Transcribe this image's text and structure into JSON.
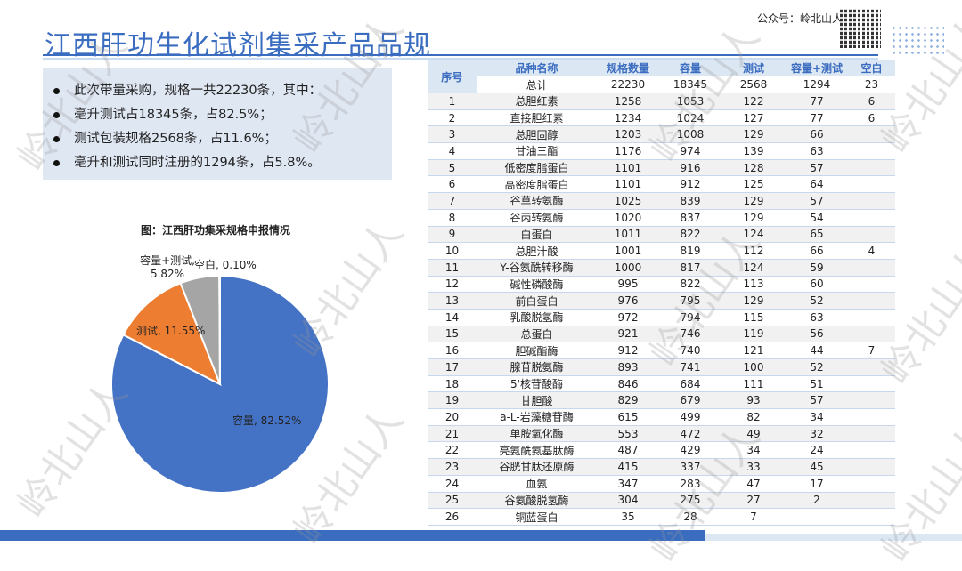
{
  "title": "江西肝功生化试剂集采产品品规",
  "brand": {
    "label": "公众号：岭北山人",
    "watermark": "岭北山人"
  },
  "bullets": [
    "此次带量采购，规格一共22230条，其中：",
    "毫升测试占18345条，占82.5%；",
    "测试包装规格2568条，占11.6%；",
    "毫升和测试同时注册的1294条，占5.8%。"
  ],
  "chart_data": {
    "type": "pie",
    "title": "图：江西肝功集采规格申报情况",
    "slices": [
      {
        "name": "容量",
        "value": 82.52,
        "label": "容量, 82.52%",
        "color": "#4472c4"
      },
      {
        "name": "测试",
        "value": 11.55,
        "label": "测试, 11.55%",
        "color": "#ed7d31"
      },
      {
        "name": "容量+测试",
        "value": 5.82,
        "label": "容量+测试, 5.82%",
        "color": "#a5a5a5"
      },
      {
        "name": "空白",
        "value": 0.1,
        "label": "空白, 0.10%",
        "color": "#ffc000"
      }
    ]
  },
  "table": {
    "headers": [
      "序号",
      "品种名称",
      "规格数量",
      "容量",
      "测试",
      "容量+测试",
      "空白"
    ],
    "total": [
      "总计",
      "22230",
      "18345",
      "2568",
      "1294",
      "23"
    ],
    "rows": [
      [
        "1",
        "总胆红素",
        "1258",
        "1053",
        "122",
        "77",
        "6"
      ],
      [
        "2",
        "直接胆红素",
        "1234",
        "1024",
        "127",
        "77",
        "6"
      ],
      [
        "3",
        "总胆固醇",
        "1203",
        "1008",
        "129",
        "66",
        ""
      ],
      [
        "4",
        "甘油三酯",
        "1176",
        "974",
        "139",
        "63",
        ""
      ],
      [
        "5",
        "低密度脂蛋白",
        "1101",
        "916",
        "128",
        "57",
        ""
      ],
      [
        "6",
        "高密度脂蛋白",
        "1101",
        "912",
        "125",
        "64",
        ""
      ],
      [
        "7",
        "谷草转氨酶",
        "1025",
        "839",
        "129",
        "57",
        ""
      ],
      [
        "8",
        "谷丙转氨酶",
        "1020",
        "837",
        "129",
        "54",
        ""
      ],
      [
        "9",
        "白蛋白",
        "1011",
        "822",
        "124",
        "65",
        ""
      ],
      [
        "10",
        "总胆汁酸",
        "1001",
        "819",
        "112",
        "66",
        "4"
      ],
      [
        "11",
        "Y-谷氨酰转移酶",
        "1000",
        "817",
        "124",
        "59",
        ""
      ],
      [
        "12",
        "碱性磷酸酶",
        "995",
        "822",
        "113",
        "60",
        ""
      ],
      [
        "13",
        "前白蛋白",
        "976",
        "795",
        "129",
        "52",
        ""
      ],
      [
        "14",
        "乳酸脱氢酶",
        "972",
        "794",
        "115",
        "63",
        ""
      ],
      [
        "15",
        "总蛋白",
        "921",
        "746",
        "119",
        "56",
        ""
      ],
      [
        "16",
        "胆碱酯酶",
        "912",
        "740",
        "121",
        "44",
        "7"
      ],
      [
        "17",
        "腺苷脱氨酶",
        "893",
        "741",
        "100",
        "52",
        ""
      ],
      [
        "18",
        "5'核苷酸酶",
        "846",
        "684",
        "111",
        "51",
        ""
      ],
      [
        "19",
        "甘胆酸",
        "829",
        "679",
        "93",
        "57",
        ""
      ],
      [
        "20",
        "a-L-岩藻糖苷酶",
        "615",
        "499",
        "82",
        "34",
        ""
      ],
      [
        "21",
        "单胺氧化酶",
        "553",
        "472",
        "49",
        "32",
        ""
      ],
      [
        "22",
        "亮氨酰氨基肽酶",
        "487",
        "429",
        "34",
        "24",
        ""
      ],
      [
        "23",
        "谷胱甘肽还原酶",
        "415",
        "337",
        "33",
        "45",
        ""
      ],
      [
        "24",
        "血氨",
        "347",
        "283",
        "47",
        "17",
        ""
      ],
      [
        "25",
        "谷氨酸脱氢酶",
        "304",
        "275",
        "27",
        "2",
        ""
      ],
      [
        "26",
        "铜蓝蛋白",
        "35",
        "28",
        "7",
        "",
        ""
      ]
    ]
  }
}
